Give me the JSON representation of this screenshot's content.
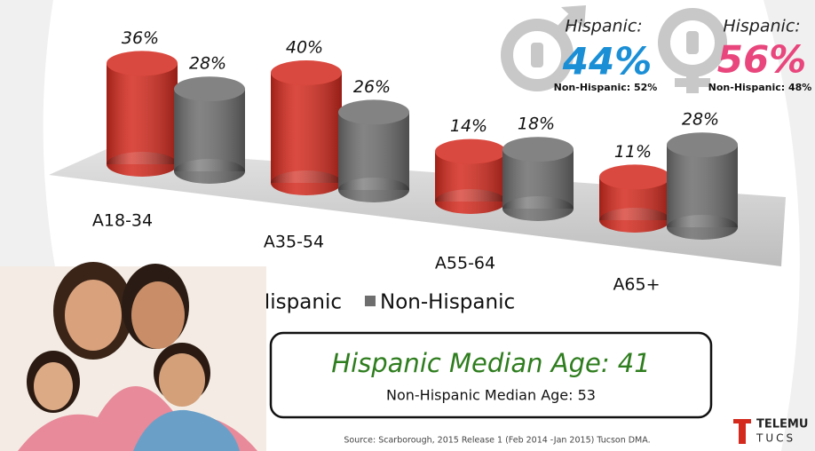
{
  "chart_data": {
    "type": "bar",
    "categories": [
      "A18-34",
      "A35-54",
      "A55-64",
      "A65+"
    ],
    "series": [
      {
        "name": "Hispanic",
        "color": "#d42a1e",
        "values": [
          36,
          40,
          14,
          11
        ],
        "value_labels": [
          "36%",
          "40%",
          "14%",
          "11%"
        ]
      },
      {
        "name": "Non-Hispanic",
        "color": "#6e6e6e",
        "values": [
          28,
          26,
          18,
          28
        ],
        "value_labels": [
          "28%",
          "26%",
          "18%",
          "28%"
        ]
      }
    ]
  },
  "gender": [
    {
      "heading": "Hispanic:",
      "share": "44%",
      "other": "Non-Hispanic: 52%",
      "color": "#1b8fd6"
    },
    {
      "heading": "Hispanic:",
      "share": "56%",
      "other": "Non-Hispanic: 48%",
      "color": "#e8467c"
    }
  ],
  "median_age": {
    "primary": "Hispanic Median Age: 41",
    "secondary": "Non-Hispanic Median Age:  53"
  },
  "source": "Source: Scarborough, 2015 Release 1 (Feb 2014 -Jan 2015) Tucson DMA.",
  "logo": {
    "line1": "TELEMU",
    "line2": "TUCS"
  }
}
